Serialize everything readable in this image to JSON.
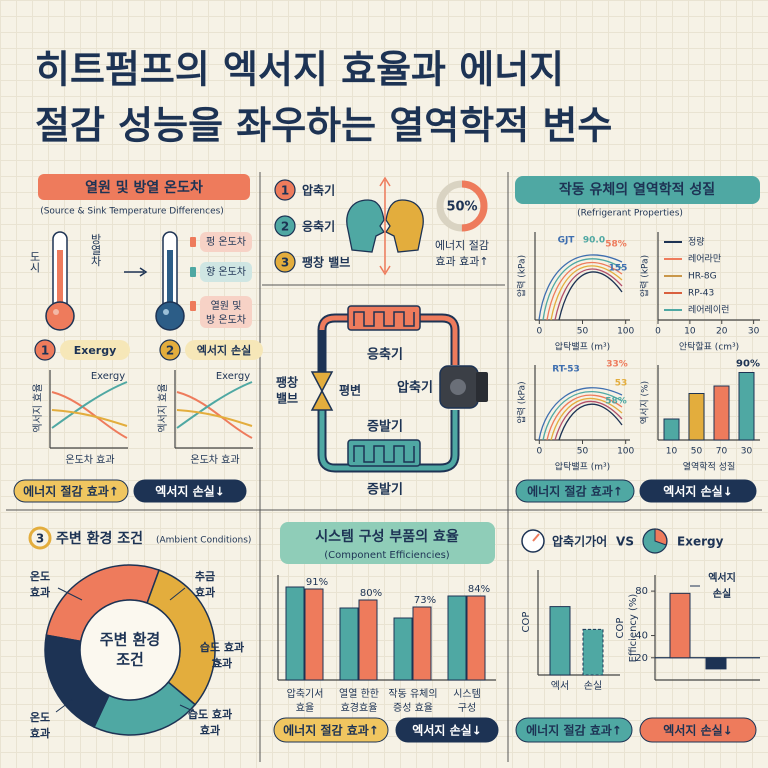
{
  "header": {
    "title": [
      "히트펌프의 엑서지 효율과 에너지",
      "절감 성능을 좌우하는 열역학적 변수"
    ]
  },
  "temperature": {
    "title": "열원 및 방열 온도차",
    "subtitle": "(Source & Sink Temperature Differences)",
    "thermo_labels": [
      "도시",
      "방열차"
    ],
    "legend": [
      [
        "펑 온도차"
      ],
      [
        "향 온도차"
      ],
      [
        "열원 및",
        "방 온도차"
      ]
    ],
    "charts": [
      {
        "number": "1",
        "title": "Exergy",
        "curve_label": "Exergy",
        "y_label": "엑서지 효율",
        "x_label": "온도차 효과"
      },
      {
        "number": "2",
        "title": "엑서지 손실",
        "curve_label": "Exergy",
        "y_label": "엑서지 효율",
        "x_label": "온도차 효과"
      }
    ],
    "buttons": [
      "에너지 절감 효과↑",
      "엑서지 손실↓"
    ]
  },
  "cycle": {
    "components": [
      {
        "number": "1",
        "label": "압축기"
      },
      {
        "number": "2",
        "label": "응축기"
      },
      {
        "number": "3",
        "label": "팽창 밸브"
      }
    ],
    "gauge": {
      "value": 50,
      "label": "50%"
    },
    "gauge_caption": [
      "에너지 절감",
      "효과 효과↑"
    ],
    "diagram": {
      "condenser": "응축기",
      "compressor": "압축기",
      "valve": [
        "팽창",
        "밸브"
      ],
      "valve_side": "평변",
      "evaporator": "증발기",
      "evaporator_caption": "증발기"
    }
  },
  "refrigerant": {
    "title": "작동 유체의 열역학적 성질",
    "subtitle": "(Refrigerant Properties)",
    "charts": [
      {
        "y_label": "압력 (kPa)",
        "x_label": "압탁밸프 (m³)",
        "xlim": [
          -5,
          105
        ],
        "xticks": [
          0,
          50,
          100
        ],
        "annotations": [
          {
            "text": "GJT",
            "color": "#3f6fb0"
          },
          {
            "text": "90.0",
            "color": "#4fa8a3"
          },
          {
            "text": "58%",
            "color": "#ee7b5c"
          },
          {
            "text": "155",
            "color": "#3f6fb0"
          }
        ]
      },
      {
        "y_label": "압력 (kPa)",
        "x_label": "안탁할표 (cm³)",
        "xlim": [
          0,
          32
        ],
        "xticks": [
          0,
          10,
          20,
          30
        ],
        "legend": [
          {
            "name": "정량",
            "color": "#1d3354"
          },
          {
            "name": "레어라만",
            "color": "#ee7b5c"
          },
          {
            "name": "HR-8G",
            "color": "#c9974a"
          },
          {
            "name": "RP-43",
            "color": "#d9603f"
          },
          {
            "name": "레어레이런",
            "color": "#4fa8a3"
          }
        ]
      },
      {
        "y_label": "압력 (kPa)",
        "x_label": "압탁밸프 (m³)",
        "xlim": [
          -5,
          105
        ],
        "xticks": [
          0,
          50,
          100
        ],
        "annotations": [
          {
            "text": "RT-53",
            "color": "#3f6fb0"
          },
          {
            "text": "33%",
            "color": "#ee7b5c"
          },
          {
            "text": "53",
            "color": "#e3ad3d"
          },
          {
            "text": "58%",
            "color": "#4fa8a3"
          }
        ]
      },
      {
        "y_label": "엑서지 (%)",
        "x_label": "열역학적 성질",
        "categories": [
          "10",
          "50",
          "70",
          "30"
        ],
        "values": [
          28,
          62,
          72,
          90
        ],
        "value_labels": [
          null,
          null,
          null,
          "90%"
        ],
        "colors": [
          "#4fa8a3",
          "#e3ad3d",
          "#ee7b5c",
          "#4fa8a3"
        ],
        "ylim": [
          0,
          100
        ]
      }
    ],
    "buttons": [
      "에너지 절감 효과↑",
      "엑서지 손실↓"
    ]
  },
  "ambient": {
    "number": "3",
    "title": "주변 환경 조건",
    "subtitle": "(Ambient Conditions)",
    "center": [
      "주변 환경",
      "조건"
    ],
    "labels": [
      [
        "온도",
        "효과"
      ],
      [
        "추금",
        "효과"
      ],
      [
        "습도 효과",
        "효과"
      ],
      [
        "습도 효과",
        "효과"
      ],
      [
        "온도",
        "효과"
      ]
    ]
  },
  "components": {
    "title": "시스템 구성 부품의 효율",
    "subtitle": "(Component Efficiencies)",
    "categories": [
      [
        "압축기서",
        "효율"
      ],
      [
        "열열 한한",
        "효경효율"
      ],
      [
        "작동 유체의",
        "증성 효율"
      ],
      [
        "시스템",
        "구성"
      ]
    ],
    "series": [
      {
        "color": "#4fa8a3",
        "values": [
          93,
          72,
          62,
          84
        ]
      },
      {
        "color": "#ee7b5c",
        "values": [
          91,
          80,
          73,
          84
        ],
        "value_labels": [
          "91%",
          "80%",
          "73%",
          "84%"
        ]
      }
    ],
    "ylim": [
      0,
      100
    ],
    "buttons": [
      "에너지 절감 효과↑",
      "엑서지 손실↓"
    ]
  },
  "cop": {
    "header": {
      "left": "압축기가어",
      "vs": "VS",
      "right": "Exergy"
    },
    "charts": [
      {
        "y_label": "COP",
        "categories": [
          "엑서",
          "손실"
        ],
        "values": [
          72,
          48
        ],
        "color": "#4fa8a3",
        "ylim": [
          0,
          100
        ]
      },
      {
        "y_label": [
          "COP",
          "Efficiency (%)"
        ],
        "ylim": [
          0,
          90
        ],
        "yticks": [
          20,
          40,
          80
        ],
        "baseline": 20,
        "values": [
          78,
          10
        ],
        "colors": [
          "#ee7b5c",
          "#1d3354"
        ],
        "annotation": [
          "엑서지",
          "손실"
        ]
      }
    ],
    "buttons": [
      "에너지 절감 효과↑",
      "엑서지 손실↓"
    ]
  }
}
